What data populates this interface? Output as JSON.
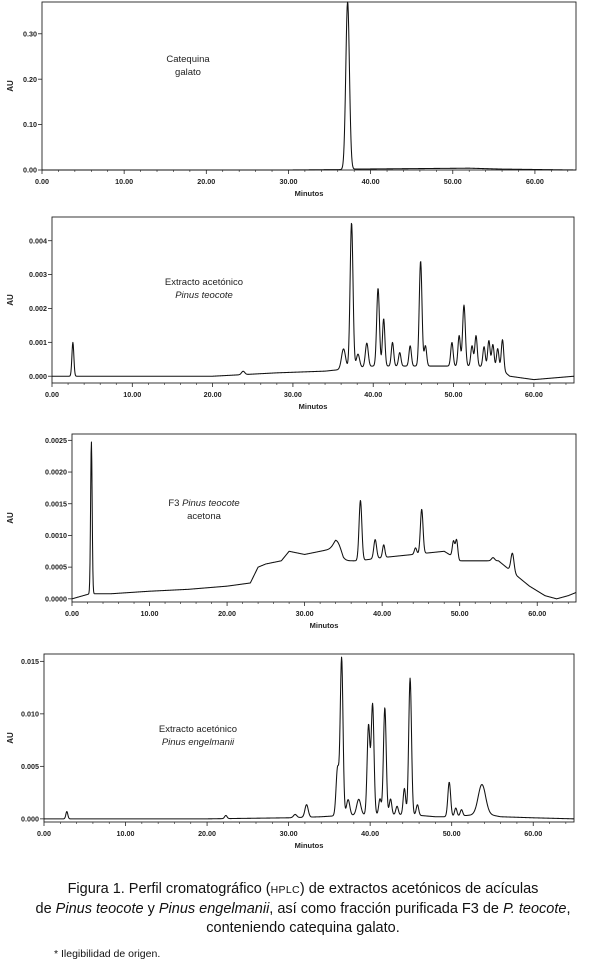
{
  "chart_data": [
    {
      "type": "line",
      "annotation": [
        "Catequina",
        "galato"
      ],
      "annotation_italic": [
        false,
        false
      ],
      "xlabel": "Minutos",
      "ylabel": "AU",
      "xlim": [
        0,
        65
      ],
      "ylim": [
        0,
        0.37
      ],
      "xticks": [
        "0.00",
        "10.00",
        "20.00",
        "30.00",
        "40.00",
        "50.00",
        "60.00"
      ],
      "yticks": [
        {
          "value": 0,
          "label": "0.00"
        },
        {
          "value": 0.1,
          "label": "0.10"
        },
        {
          "value": 0.2,
          "label": "0.20"
        },
        {
          "value": 0.3,
          "label": "0.30"
        }
      ],
      "baseline": [
        [
          0,
          0.0
        ],
        [
          30,
          0.0
        ],
        [
          36.8,
          0.001
        ],
        [
          38,
          0.002
        ],
        [
          45,
          0.003
        ],
        [
          52,
          0.004
        ],
        [
          56,
          0.002
        ],
        [
          65,
          0.0
        ]
      ],
      "peaks": [
        {
          "x": 37.2,
          "y": 0.37,
          "w": 0.22
        }
      ]
    },
    {
      "type": "line",
      "annotation": [
        "Extracto acetónico",
        "Pinus teocote"
      ],
      "annotation_italic": [
        false,
        true
      ],
      "xlabel": "Minutos",
      "ylabel": "AU",
      "xlim": [
        0,
        65
      ],
      "ylim": [
        -0.0002,
        0.0047
      ],
      "xticks": [
        "0.00",
        "10.00",
        "20.00",
        "30.00",
        "40.00",
        "50.00",
        "60.00"
      ],
      "yticks": [
        {
          "value": 0,
          "label": "0.000"
        },
        {
          "value": 0.001,
          "label": "0.001"
        },
        {
          "value": 0.002,
          "label": "0.002"
        },
        {
          "value": 0.003,
          "label": "0.003"
        },
        {
          "value": 0.004,
          "label": "0.004"
        }
      ],
      "baseline": [
        [
          0,
          0.0
        ],
        [
          2,
          0.0
        ],
        [
          3,
          0.0
        ],
        [
          10,
          0.0
        ],
        [
          20,
          0.0
        ],
        [
          28,
          0.0001
        ],
        [
          34,
          0.00015
        ],
        [
          36,
          0.0002
        ],
        [
          40,
          0.0003
        ],
        [
          46,
          0.0003
        ],
        [
          50,
          0.0003
        ],
        [
          53,
          0.0003
        ],
        [
          56,
          0.0002
        ],
        [
          57,
          0.0
        ],
        [
          60,
          -0.0001
        ],
        [
          65,
          0.0
        ]
      ],
      "peaks": [
        {
          "x": 2.6,
          "y": 0.001,
          "w": 0.12
        },
        {
          "x": 23.8,
          "y": 0.0001,
          "w": 0.2
        },
        {
          "x": 36.3,
          "y": 0.0006,
          "w": 0.25
        },
        {
          "x": 37.3,
          "y": 0.0043,
          "w": 0.18
        },
        {
          "x": 38.1,
          "y": 0.0004,
          "w": 0.2
        },
        {
          "x": 39.2,
          "y": 0.0007,
          "w": 0.18
        },
        {
          "x": 40.6,
          "y": 0.0023,
          "w": 0.17
        },
        {
          "x": 41.3,
          "y": 0.0014,
          "w": 0.15
        },
        {
          "x": 42.4,
          "y": 0.0007,
          "w": 0.15
        },
        {
          "x": 43.3,
          "y": 0.0004,
          "w": 0.15
        },
        {
          "x": 44.6,
          "y": 0.0006,
          "w": 0.15
        },
        {
          "x": 45.9,
          "y": 0.0031,
          "w": 0.17
        },
        {
          "x": 46.5,
          "y": 0.0006,
          "w": 0.15
        },
        {
          "x": 49.8,
          "y": 0.0007,
          "w": 0.15
        },
        {
          "x": 50.7,
          "y": 0.0009,
          "w": 0.15
        },
        {
          "x": 51.3,
          "y": 0.0018,
          "w": 0.17
        },
        {
          "x": 52.3,
          "y": 0.0006,
          "w": 0.15
        },
        {
          "x": 52.8,
          "y": 0.0009,
          "w": 0.15
        },
        {
          "x": 53.8,
          "y": 0.0006,
          "w": 0.15
        },
        {
          "x": 54.4,
          "y": 0.0008,
          "w": 0.15
        },
        {
          "x": 54.9,
          "y": 0.0007,
          "w": 0.15
        },
        {
          "x": 55.5,
          "y": 0.0006,
          "w": 0.15
        },
        {
          "x": 56.1,
          "y": 0.0009,
          "w": 0.15
        }
      ]
    },
    {
      "type": "line",
      "annotation": [
        "F3 Pinus teocote",
        "acetona"
      ],
      "annotation_italic": [
        false,
        false
      ],
      "annotation_mixed": [
        {
          "plain": "F3 ",
          "italic": "Pinus teocote"
        },
        null
      ],
      "xlabel": "Minutos",
      "ylabel": "AU",
      "xlim": [
        0,
        65
      ],
      "ylim": [
        -5e-05,
        0.0026
      ],
      "xticks": [
        "0.00",
        "10.00",
        "20.00",
        "30.00",
        "40.00",
        "50.00",
        "60.00"
      ],
      "yticks": [
        {
          "value": 0,
          "label": "0.0000"
        },
        {
          "value": 0.0005,
          "label": "0.0005"
        },
        {
          "value": 0.001,
          "label": "0.0010"
        },
        {
          "value": 0.0015,
          "label": "0.0015"
        },
        {
          "value": 0.002,
          "label": "0.0020"
        },
        {
          "value": 0.0025,
          "label": "0.0025"
        }
      ],
      "baseline": [
        [
          0,
          0.0
        ],
        [
          2.3,
          8e-05
        ],
        [
          3,
          8e-05
        ],
        [
          5,
          8e-05
        ],
        [
          10,
          0.00012
        ],
        [
          15,
          0.00015
        ],
        [
          20,
          0.0002
        ],
        [
          23,
          0.00025
        ],
        [
          24,
          0.0005
        ],
        [
          25,
          0.00055
        ],
        [
          27,
          0.0006
        ],
        [
          28,
          0.00075
        ],
        [
          30,
          0.0007
        ],
        [
          32,
          0.00075
        ],
        [
          34,
          0.0008
        ],
        [
          35,
          0.0006
        ],
        [
          37,
          0.0006
        ],
        [
          40,
          0.00065
        ],
        [
          44,
          0.0007
        ],
        [
          48,
          0.00075
        ],
        [
          50,
          0.0006
        ],
        [
          52,
          0.0006
        ],
        [
          55,
          0.0006
        ],
        [
          56,
          0.0005
        ],
        [
          57,
          0.0004
        ],
        [
          59,
          0.0002
        ],
        [
          61,
          5e-05
        ],
        [
          62.5,
          0.0
        ],
        [
          64,
          5e-05
        ],
        [
          65,
          0.0001
        ]
      ],
      "peaks": [
        {
          "x": 2.5,
          "y": 0.0024,
          "w": 0.1
        },
        {
          "x": 34.3,
          "y": 0.00015,
          "w": 0.5
        },
        {
          "x": 37.2,
          "y": 0.00095,
          "w": 0.18
        },
        {
          "x": 39.1,
          "y": 0.0003,
          "w": 0.18
        },
        {
          "x": 40.2,
          "y": 0.0002,
          "w": 0.15
        },
        {
          "x": 44.3,
          "y": 0.0001,
          "w": 0.15
        },
        {
          "x": 45.1,
          "y": 0.0007,
          "w": 0.17
        },
        {
          "x": 49.2,
          "y": 0.00025,
          "w": 0.15
        },
        {
          "x": 49.6,
          "y": 0.0003,
          "w": 0.15
        },
        {
          "x": 54.3,
          "y": 5e-05,
          "w": 0.2
        },
        {
          "x": 56.8,
          "y": 0.0003,
          "w": 0.2
        }
      ]
    },
    {
      "type": "line",
      "annotation": [
        "Extracto acetónico",
        "Pinus engelmanii"
      ],
      "annotation_italic": [
        false,
        true
      ],
      "xlabel": "Minutos",
      "ylabel": "AU",
      "xlim": [
        0,
        65
      ],
      "ylim": [
        -0.0003,
        0.0157
      ],
      "xticks": [
        "0.00",
        "10.00",
        "20.00",
        "30.00",
        "40.00",
        "50.00",
        "60.00"
      ],
      "yticks": [
        {
          "value": 0,
          "label": "0.000"
        },
        {
          "value": 0.005,
          "label": "0.005"
        },
        {
          "value": 0.01,
          "label": "0.010"
        },
        {
          "value": 0.015,
          "label": "0.015"
        }
      ],
      "baseline": [
        [
          0,
          0.0
        ],
        [
          10,
          0.0
        ],
        [
          20,
          0.0
        ],
        [
          30,
          0.0001
        ],
        [
          34,
          0.0002
        ],
        [
          36,
          0.0003
        ],
        [
          40,
          0.0004
        ],
        [
          45,
          0.0004
        ],
        [
          48,
          0.0002
        ],
        [
          50,
          0.0002
        ],
        [
          53,
          0.0004
        ],
        [
          54,
          0.0005
        ],
        [
          56,
          0.0002
        ],
        [
          60,
          0.0001
        ],
        [
          65,
          0.0
        ]
      ],
      "peaks": [
        {
          "x": 2.8,
          "y": 0.0007,
          "w": 0.12
        },
        {
          "x": 22.3,
          "y": 0.0003,
          "w": 0.15
        },
        {
          "x": 30.8,
          "y": 0.0003,
          "w": 0.2
        },
        {
          "x": 32.2,
          "y": 0.0012,
          "w": 0.2
        },
        {
          "x": 36.0,
          "y": 0.0045,
          "w": 0.18
        },
        {
          "x": 36.5,
          "y": 0.015,
          "w": 0.17
        },
        {
          "x": 37.3,
          "y": 0.0015,
          "w": 0.2
        },
        {
          "x": 38.6,
          "y": 0.0015,
          "w": 0.25
        },
        {
          "x": 39.8,
          "y": 0.0085,
          "w": 0.17
        },
        {
          "x": 40.3,
          "y": 0.0105,
          "w": 0.17
        },
        {
          "x": 41.2,
          "y": 0.0015,
          "w": 0.15
        },
        {
          "x": 41.8,
          "y": 0.0102,
          "w": 0.17
        },
        {
          "x": 42.5,
          "y": 0.0015,
          "w": 0.15
        },
        {
          "x": 43.3,
          "y": 0.0008,
          "w": 0.15
        },
        {
          "x": 44.2,
          "y": 0.0025,
          "w": 0.15
        },
        {
          "x": 44.9,
          "y": 0.013,
          "w": 0.17
        },
        {
          "x": 45.8,
          "y": 0.001,
          "w": 0.15
        },
        {
          "x": 49.7,
          "y": 0.0033,
          "w": 0.17
        },
        {
          "x": 50.5,
          "y": 0.0008,
          "w": 0.15
        },
        {
          "x": 51.2,
          "y": 0.0006,
          "w": 0.15
        },
        {
          "x": 53.7,
          "y": 0.0028,
          "w": 0.45
        }
      ]
    }
  ],
  "caption": {
    "line1": [
      "Figura 1. Perfil cromatográfico (",
      "HPLC",
      ") de extractos acetónicos de acículas"
    ],
    "line2": [
      "de ",
      "Pinus teocote",
      " y ",
      "Pinus engelmanii",
      ", así como fracción purificada F3 de ",
      "P. teocote",
      ","
    ],
    "line3": "conteniendo catequina galato."
  },
  "footnote": "* Ilegibilidad de origen.",
  "colors": {
    "trace": "#111111",
    "axis": "#222222"
  }
}
